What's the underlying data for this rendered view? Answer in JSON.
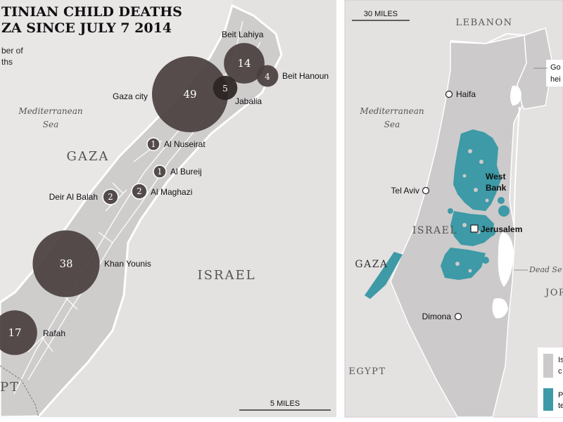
{
  "left_map": {
    "title_line1": "TINIAN CHILD DEATHS",
    "title_line2": "ZA SINCE JULY 7 2014",
    "legend_line1": "ber of",
    "legend_line2": "ths",
    "sea_line1": "Mediterranean",
    "sea_line2": "Sea",
    "region_gaza": "GAZA",
    "region_israel": "ISRAEL",
    "region_egypt": "PT",
    "scale_label": "5 MILES",
    "deaths": [
      {
        "place": "Beit Lahiya",
        "count": "14",
        "value": 14
      },
      {
        "place": "Beit Hanoun",
        "count": "4",
        "value": 4
      },
      {
        "place": "Gaza city",
        "count": "49",
        "value": 49
      },
      {
        "place": "Jabalia",
        "count": "5",
        "value": 5
      },
      {
        "place": "Al Nuseirat",
        "count": "1",
        "value": 1
      },
      {
        "place": "Al Bureij",
        "count": "1",
        "value": 1
      },
      {
        "place": "Al Maghazi",
        "count": "2",
        "value": 2
      },
      {
        "place": "Deir Al Balah",
        "count": "2",
        "value": 2
      },
      {
        "place": "Khan Younis",
        "count": "38",
        "value": 38
      },
      {
        "place": "Rafah",
        "count": "17",
        "value": 17
      }
    ]
  },
  "right_map": {
    "scale_label": "30 MILES",
    "lebanon": "LEBANON",
    "golan_line1": "Go",
    "golan_line2": "hei",
    "sea_line1": "Mediterranean",
    "sea_line2": "Sea",
    "israel": "ISRAEL",
    "gaza": "GAZA",
    "egypt": "EGYPT",
    "jordan": "JOR",
    "dead_sea": "Dead Se",
    "west_bank_line1": "West",
    "west_bank_line2": "Bank",
    "cities": {
      "haifa": "Haifa",
      "tel_aviv": "Tel Aviv",
      "jerusalem": "Jerusalem",
      "dimona": "Dimona"
    },
    "legend": {
      "israel_line1": "Is",
      "israel_line2": "c",
      "pal_line1": "P",
      "pal_line2": "te"
    }
  },
  "colors": {
    "background": "#ffffff",
    "land": "#e4e1e1",
    "strip": "#cfcccc",
    "israel_land": "#cccaca",
    "bubble": "#4a403f",
    "palestinian": "#3d9aa6",
    "water": "#ffffff"
  }
}
